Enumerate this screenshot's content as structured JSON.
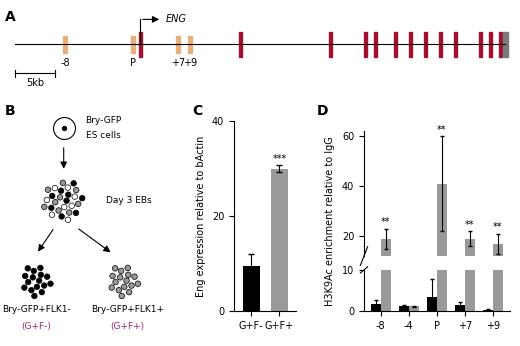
{
  "panels": {
    "A": {
      "label": "A",
      "gene": "ENG",
      "scale_bar": "5kb",
      "elements": [
        "-8",
        "P",
        "+7",
        "+9"
      ]
    },
    "B": {
      "label": "B",
      "start": [
        "Bry-GFP",
        "ES cells"
      ],
      "intermediate": "Day 3 EBs",
      "populations": [
        {
          "name": "Bry-GFP+FLK1-",
          "short": "(G+F-)"
        },
        {
          "name": "Bry-GFP+FLK1+",
          "short": "(G+F+)"
        }
      ]
    }
  },
  "chart_data": [
    {
      "panel": "C",
      "type": "bar",
      "categories": [
        "G+F-",
        "G+F+"
      ],
      "values": [
        9.5,
        30
      ],
      "errors": [
        2.5,
        0.7
      ],
      "colors": [
        "#000000",
        "#999999"
      ],
      "annotations": [
        null,
        "***"
      ],
      "y_label": "Eng expression relative to bActin",
      "ylim": [
        0,
        40
      ],
      "yticks": [
        0,
        20,
        40
      ]
    },
    {
      "panel": "D",
      "type": "bar",
      "categories": [
        "-8",
        "-4",
        "P",
        "+7",
        "+9"
      ],
      "series": [
        {
          "color": "#000000",
          "values": [
            1.8,
            1.2,
            3.5,
            1.6,
            0.3
          ],
          "errors": [
            1.0,
            0.3,
            4.2,
            0.7,
            0.2
          ]
        },
        {
          "color": "#999999",
          "values": [
            19,
            1.2,
            41,
            19,
            17
          ],
          "errors": [
            4,
            0.2,
            19,
            3,
            4
          ],
          "annotations": [
            "**",
            null,
            "**",
            "**",
            "**"
          ]
        }
      ],
      "y_label": "H3K9Ac enrichment relative to IgG",
      "segments": [
        {
          "ylim": [
            0,
            10
          ],
          "yticks": [
            0,
            10
          ]
        },
        {
          "ylim": [
            12,
            62
          ],
          "yticks": [
            20,
            40,
            60
          ]
        }
      ]
    }
  ]
}
